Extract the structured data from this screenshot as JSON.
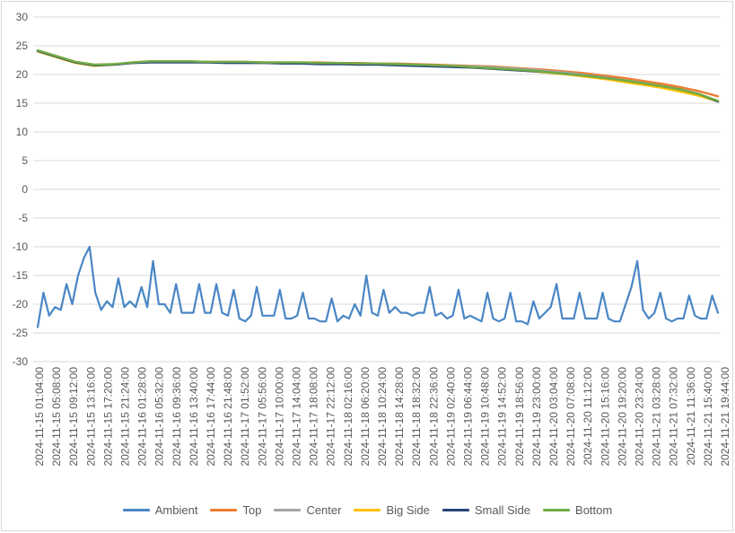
{
  "chart_data": {
    "type": "line",
    "title": "",
    "xlabel": "",
    "ylabel": "",
    "ylim": [
      -30,
      30
    ],
    "yticks": [
      30,
      25,
      20,
      15,
      10,
      5,
      0,
      -5,
      -10,
      -15,
      -20,
      -25,
      -30
    ],
    "grid": "horizontal",
    "legend_position": "bottom",
    "x_tick_labels": [
      "2024-11-15 01:04:00",
      "2024-11-15 05:08:00",
      "2024-11-15 09:12:00",
      "2024-11-15 13:16:00",
      "2024-11-15 17:20:00",
      "2024-11-15 21:24:00",
      "2024-11-16 01:28:00",
      "2024-11-16 05:32:00",
      "2024-11-16 09:36:00",
      "2024-11-16 13:40:00",
      "2024-11-16 17:44:00",
      "2024-11-16 21:48:00",
      "2024-11-17 01:52:00",
      "2024-11-17 05:56:00",
      "2024-11-17 10:00:00",
      "2024-11-17 14:04:00",
      "2024-11-17 18:08:00",
      "2024-11-17 22:12:00",
      "2024-11-18 02:16:00",
      "2024-11-18 06:20:00",
      "2024-11-18 10:24:00",
      "2024-11-18 14:28:00",
      "2024-11-18 18:32:00",
      "2024-11-18 22:36:00",
      "2024-11-19 02:40:00",
      "2024-11-19 06:44:00",
      "2024-11-19 10:48:00",
      "2024-11-19 14:52:00",
      "2024-11-19 18:56:00",
      "2024-11-19 23:00:00",
      "2024-11-20 03:04:00",
      "2024-11-20 07:08:00",
      "2024-11-20 11:12:00",
      "2024-11-20 15:16:00",
      "2024-11-20 19:20:00",
      "2024-11-20 23:24:00",
      "2024-11-21 03:28:00",
      "2024-11-21 07:32:00",
      "2024-11-21 11:36:00",
      "2024-11-21 15:40:00",
      "2024-11-21 19:44:00"
    ],
    "series": [
      {
        "name": "Ambient",
        "color": "#4a86c5",
        "values": [
          -24,
          -18,
          -22,
          -20.5,
          -21,
          -16.5,
          -20,
          -15,
          -12,
          -10,
          -18,
          -21,
          -19.5,
          -20.5,
          -15.5,
          -20.5,
          -19.5,
          -20.5,
          -17,
          -20.5,
          -12.5,
          -20,
          -20,
          -21.5,
          -16.5,
          -21.5,
          -21.5,
          -21.5,
          -16.5,
          -21.5,
          -21.5,
          -16.5,
          -21.5,
          -22,
          -17.5,
          -22.5,
          -23,
          -22,
          -17,
          -22,
          -22,
          -22,
          -17.5,
          -22.5,
          -22.5,
          -22,
          -18,
          -22.5,
          -22.5,
          -23,
          -23,
          -19,
          -23,
          -22,
          -22.5,
          -20,
          -22,
          -15,
          -21.5,
          -22,
          -17.5,
          -21.5,
          -20.5,
          -21.5,
          -21.5,
          -22,
          -21.5,
          -21.5,
          -17,
          -22,
          -21.5,
          -22.5,
          -22,
          -17.5,
          -22.5,
          -22,
          -22.5,
          -23,
          -18,
          -22.5,
          -23,
          -22.5,
          -18,
          -23,
          -23,
          -23.5,
          -19.5,
          -22.5,
          -21.5,
          -20.5,
          -16.5,
          -22.5,
          -22.5,
          -22.5,
          -18,
          -22.5,
          -22.5,
          -22.5,
          -18,
          -22.5,
          -23,
          -23,
          -20,
          -17,
          -12.5,
          -21,
          -22.5,
          -21.5,
          -18,
          -22.5,
          -23,
          -22.5,
          -22.5,
          -18.5,
          -22,
          -22.5,
          -22.5,
          -18.5,
          -21.5
        ]
      },
      {
        "name": "Top",
        "color": "#ed7d31",
        "values": [
          24.2,
          23.2,
          22.2,
          21.7,
          21.8,
          22.1,
          22.3,
          22.3,
          22.3,
          22.2,
          22.2,
          22.2,
          22.1,
          22.1,
          22.1,
          22.1,
          22.0,
          22.0,
          21.9,
          21.9,
          21.8,
          21.7,
          21.6,
          21.5,
          21.4,
          21.2,
          21.0,
          20.8,
          20.5,
          20.2,
          19.8,
          19.4,
          18.9,
          18.4,
          17.8,
          17.1,
          16.2
        ]
      },
      {
        "name": "Center",
        "color": "#a5a5a5",
        "values": [
          24.1,
          23.1,
          22.1,
          21.6,
          21.7,
          22.0,
          22.2,
          22.2,
          22.2,
          22.1,
          22.1,
          22.1,
          22.0,
          22.0,
          22.0,
          22.0,
          21.9,
          21.9,
          21.8,
          21.8,
          21.7,
          21.6,
          21.5,
          21.4,
          21.3,
          21.1,
          20.9,
          20.6,
          20.3,
          19.9,
          19.5,
          19.0,
          18.5,
          18.0,
          17.3,
          16.5,
          15.4
        ]
      },
      {
        "name": "Big Side",
        "color": "#ffc000",
        "values": [
          24.0,
          23.0,
          22.0,
          21.5,
          21.7,
          22.0,
          22.2,
          22.2,
          22.2,
          22.1,
          22.1,
          22.1,
          22.0,
          22.0,
          22.0,
          21.9,
          21.9,
          21.8,
          21.8,
          21.7,
          21.6,
          21.5,
          21.4,
          21.2,
          21.0,
          20.8,
          20.6,
          20.3,
          20.0,
          19.6,
          19.2,
          18.7,
          18.2,
          17.7,
          17.0,
          16.3,
          15.3
        ]
      },
      {
        "name": "Small Side",
        "color": "#264478",
        "values": [
          24.1,
          23.1,
          22.1,
          21.6,
          21.7,
          22.0,
          22.1,
          22.1,
          22.1,
          22.1,
          22.0,
          22.0,
          22.0,
          21.9,
          21.9,
          21.8,
          21.8,
          21.7,
          21.7,
          21.6,
          21.5,
          21.4,
          21.3,
          21.2,
          21.0,
          20.8,
          20.6,
          20.4,
          20.1,
          19.8,
          19.4,
          19.0,
          18.5,
          18.0,
          17.4,
          16.6,
          15.3
        ]
      },
      {
        "name": "Bottom",
        "color": "#70ad47",
        "values": [
          24.2,
          23.2,
          22.2,
          21.7,
          21.8,
          22.1,
          22.3,
          22.3,
          22.3,
          22.2,
          22.2,
          22.2,
          22.1,
          22.1,
          22.1,
          22.0,
          22.0,
          21.9,
          21.9,
          21.8,
          21.7,
          21.6,
          21.5,
          21.3,
          21.1,
          20.9,
          20.7,
          20.4,
          20.1,
          19.8,
          19.4,
          19.0,
          18.5,
          18.0,
          17.4,
          16.6,
          15.4
        ]
      }
    ]
  }
}
